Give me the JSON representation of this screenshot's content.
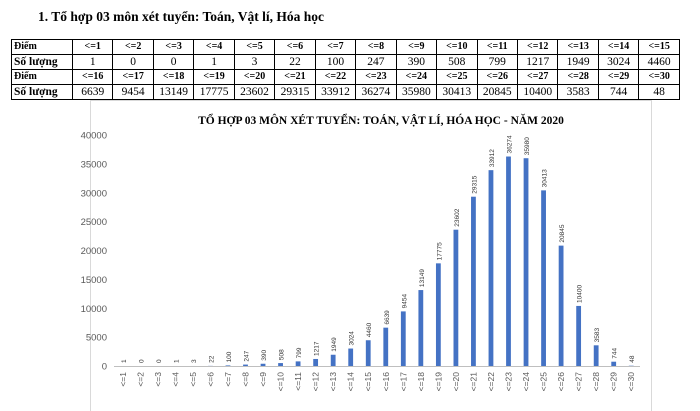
{
  "heading": "1. Tổ hợp 03 môn xét tuyển: Toán, Vật lí, Hóa học",
  "table": {
    "row_label_score": "Điểm",
    "row_label_count": "Số lượng",
    "rows": [
      {
        "scores": [
          "<=1",
          "<=2",
          "<=3",
          "<=4",
          "<=5",
          "<=6",
          "<=7",
          "<=8",
          "<=9",
          "<=10",
          "<=11",
          "<=12",
          "<=13",
          "<=14",
          "<=15"
        ],
        "counts": [
          "1",
          "0",
          "0",
          "1",
          "3",
          "22",
          "100",
          "247",
          "390",
          "508",
          "799",
          "1217",
          "1949",
          "3024",
          "4460"
        ]
      },
      {
        "scores": [
          "<=16",
          "<=17",
          "<=18",
          "<=19",
          "<=20",
          "<=21",
          "<=22",
          "<=23",
          "<=24",
          "<=25",
          "<=26",
          "<=27",
          "<=28",
          "<=29",
          "<=30"
        ],
        "counts": [
          "6639",
          "9454",
          "13149",
          "17775",
          "23602",
          "29315",
          "33912",
          "36274",
          "35980",
          "30413",
          "20845",
          "10400",
          "3583",
          "744",
          "48"
        ]
      }
    ]
  },
  "chart_data": {
    "type": "bar",
    "title": "TỔ HỢP 03 MÔN XÉT TUYỂN: TOÁN, VẬT LÍ, HÓA HỌC - NĂM 2020",
    "xlabel": "",
    "ylabel": "",
    "categories": [
      "<=1",
      "<=2",
      "<=3",
      "<=4",
      "<=5",
      "<=6",
      "<=7",
      "<=8",
      "<=9",
      "<=10",
      "<=11",
      "<=12",
      "<=13",
      "<=14",
      "<=15",
      "<=16",
      "<=17",
      "<=18",
      "<=19",
      "<=20",
      "<=21",
      "<=22",
      "<=23",
      "<=24",
      "<=25",
      "<=26",
      "<=27",
      "<=28",
      "<=29",
      "<=30"
    ],
    "values": [
      1,
      0,
      0,
      1,
      3,
      22,
      100,
      247,
      390,
      508,
      799,
      1217,
      1949,
      3024,
      4460,
      6639,
      9454,
      13149,
      17775,
      23602,
      29315,
      33912,
      36274,
      35980,
      30413,
      20845,
      10400,
      3583,
      744,
      48
    ],
    "ylim": [
      0,
      40000
    ],
    "yticks": [
      0,
      5000,
      10000,
      15000,
      20000,
      25000,
      30000,
      35000,
      40000
    ],
    "grid": false,
    "legend": "none",
    "bar_color": "#4472c4"
  }
}
